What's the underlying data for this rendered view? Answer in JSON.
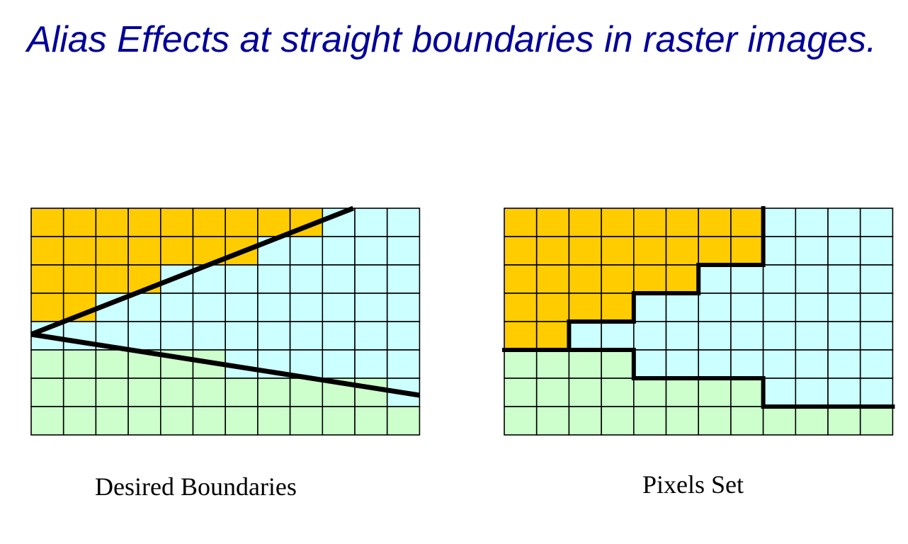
{
  "title": "Alias Effects at straight boundaries in raster images.",
  "colors": {
    "top_region": "#ffcc00",
    "middle_region": "#ccffff",
    "bottom_region": "#ccffcc",
    "grid_line": "#000000",
    "boundary": "#000000",
    "title_text": "#000099"
  },
  "grid": {
    "columns": 12,
    "rows": 8
  },
  "desired_boundaries": {
    "caption": "Desired Boundaries",
    "upper_line": {
      "from": [
        0,
        4.45
      ],
      "to": [
        9.95,
        0
      ]
    },
    "lower_line": {
      "from": [
        0,
        4.45
      ],
      "to": [
        12,
        6.6
      ]
    }
  },
  "pixels_set": {
    "caption": "Pixels Set",
    "top_region_columns_per_row": [
      8,
      8,
      6,
      4,
      2,
      0,
      0,
      0
    ],
    "bottom_region_columns_per_row": [
      0,
      0,
      0,
      0,
      0,
      4,
      8,
      12
    ]
  }
}
